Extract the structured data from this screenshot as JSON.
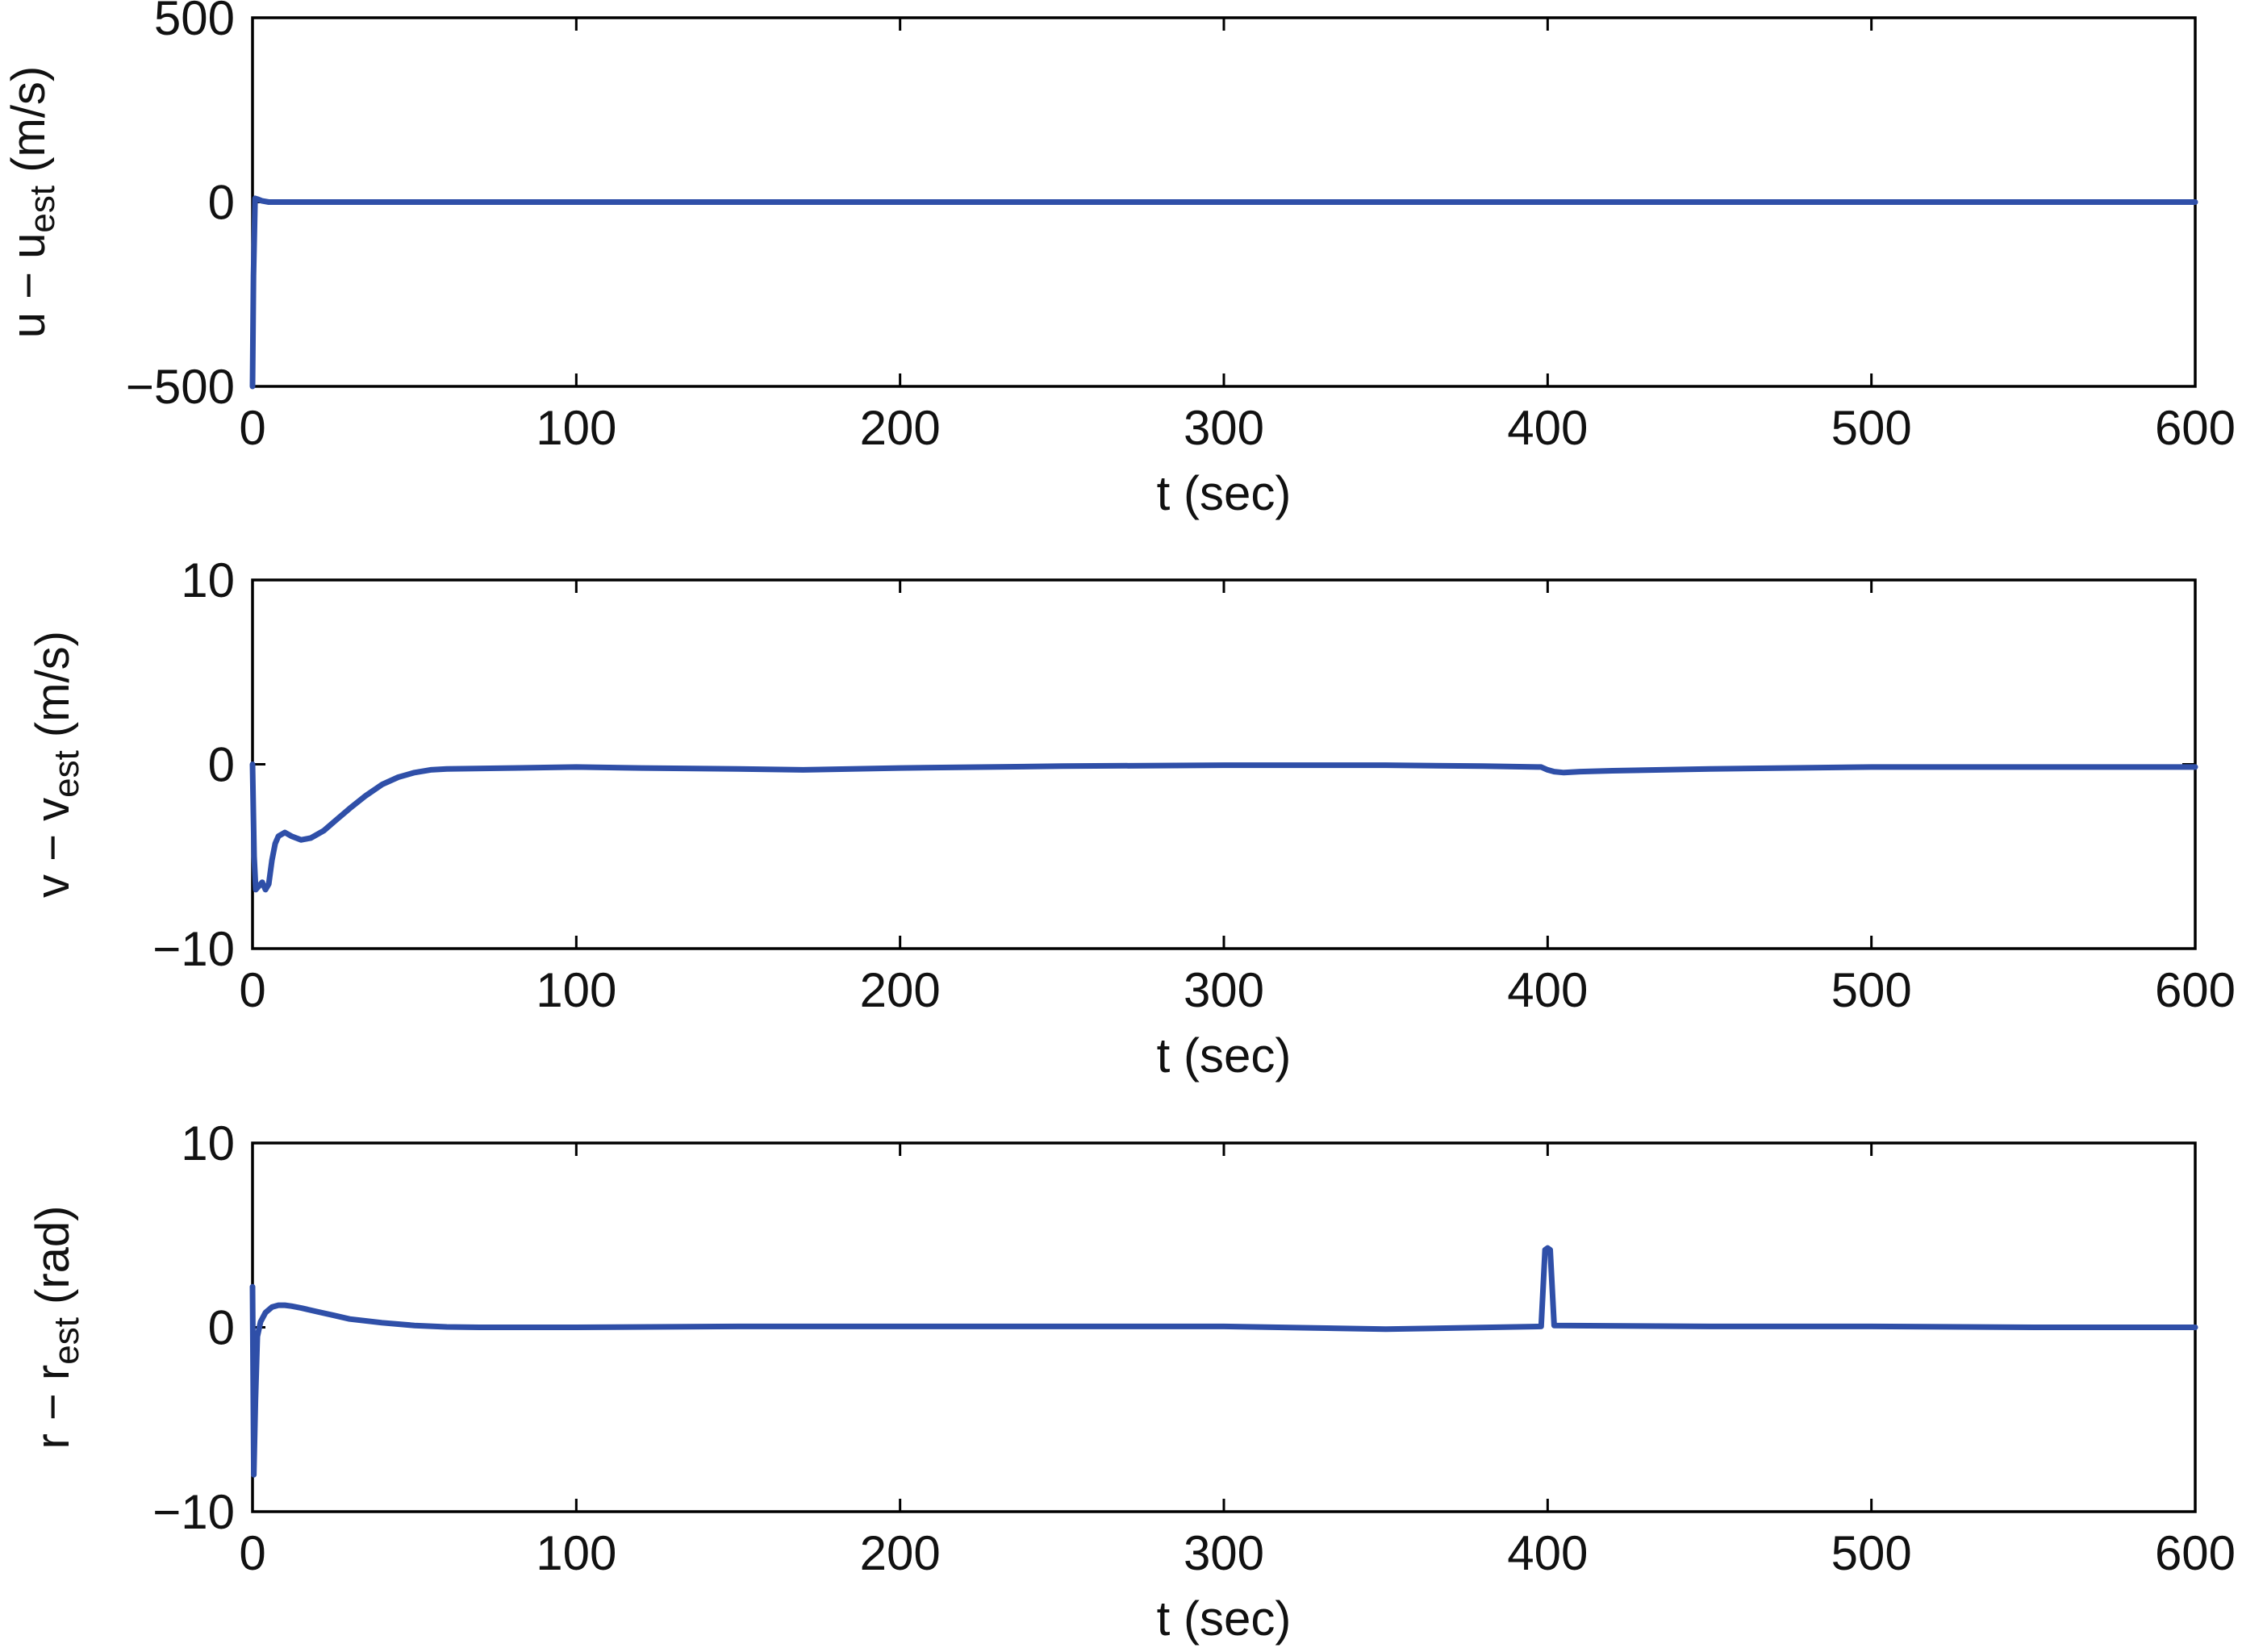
{
  "chart_data": [
    {
      "type": "line",
      "xlabel": "t (sec)",
      "ylabel": {
        "pre": "u − u",
        "sub": "est",
        "post": " (m/s)"
      },
      "xlim": [
        0,
        600
      ],
      "ylim": [
        -500,
        500
      ],
      "xticks": [
        "0",
        "100",
        "200",
        "300",
        "400",
        "500",
        "600"
      ],
      "yticks": [
        "500",
        "0",
        "−500"
      ],
      "xtick_values": [
        0,
        100,
        200,
        300,
        400,
        500,
        600
      ],
      "ytick_values": [
        500,
        0,
        -500
      ],
      "grid": false,
      "color": "#2f4fa8",
      "series": [
        {
          "x": [
            0,
            0.3,
            0.8,
            1.5,
            3,
            5,
            10,
            50,
            100,
            200,
            300,
            400,
            500,
            600
          ],
          "y": [
            -500,
            -200,
            10,
            8,
            3,
            0,
            0,
            0,
            0,
            0,
            0,
            0,
            0,
            0
          ]
        }
      ]
    },
    {
      "type": "line",
      "xlabel": "t (sec)",
      "ylabel": {
        "pre": "v − v",
        "sub": "est",
        "post": " (m/s)"
      },
      "xlim": [
        0,
        600
      ],
      "ylim": [
        -10,
        10
      ],
      "xticks": [
        "0",
        "100",
        "200",
        "300",
        "400",
        "500",
        "600"
      ],
      "yticks": [
        "10",
        "0",
        "−10"
      ],
      "xtick_values": [
        0,
        100,
        200,
        300,
        400,
        500,
        600
      ],
      "ytick_values": [
        10,
        0,
        -10
      ],
      "grid": false,
      "color": "#2f4fa8",
      "series": [
        {
          "x": [
            0,
            0.5,
            1,
            2,
            3,
            4,
            5,
            6,
            7,
            8,
            10,
            12,
            15,
            18,
            22,
            26,
            30,
            35,
            40,
            45,
            50,
            55,
            60,
            80,
            100,
            120,
            150,
            170,
            200,
            250,
            300,
            350,
            380,
            398,
            400,
            402,
            405,
            410,
            420,
            450,
            500,
            550,
            600
          ],
          "y": [
            0,
            -5,
            -6.8,
            -6.6,
            -6.4,
            -6.8,
            -6.5,
            -5.2,
            -4.3,
            -3.9,
            -3.7,
            -3.9,
            -4.1,
            -4.0,
            -3.6,
            -3.0,
            -2.4,
            -1.7,
            -1.1,
            -0.7,
            -0.45,
            -0.3,
            -0.25,
            -0.2,
            -0.15,
            -0.2,
            -0.25,
            -0.3,
            -0.2,
            -0.1,
            -0.05,
            -0.05,
            -0.1,
            -0.15,
            -0.3,
            -0.4,
            -0.45,
            -0.4,
            -0.35,
            -0.25,
            -0.15,
            -0.15,
            -0.15
          ]
        }
      ]
    },
    {
      "type": "line",
      "xlabel": "t (sec)",
      "ylabel": {
        "pre": "r − r",
        "sub": "est",
        "post": " (rad)"
      },
      "xlim": [
        0,
        600
      ],
      "ylim": [
        -10,
        10
      ],
      "xticks": [
        "0",
        "100",
        "200",
        "300",
        "400",
        "500",
        "600"
      ],
      "yticks": [
        "10",
        "0",
        "−10"
      ],
      "xtick_values": [
        0,
        100,
        200,
        300,
        400,
        500,
        600
      ],
      "ytick_values": [
        10,
        0,
        -10
      ],
      "grid": false,
      "color": "#2f4fa8",
      "series": [
        {
          "x": [
            0,
            0.4,
            0.9,
            1.5,
            2.5,
            4,
            6,
            8,
            10,
            12,
            15,
            20,
            25,
            30,
            40,
            50,
            60,
            70,
            100,
            150,
            200,
            300,
            350,
            398,
            399.2,
            400,
            400.8,
            402,
            450,
            500,
            550,
            600
          ],
          "y": [
            2.2,
            -8,
            -4,
            -0.5,
            0.3,
            0.8,
            1.1,
            1.2,
            1.2,
            1.15,
            1.05,
            0.85,
            0.65,
            0.45,
            0.25,
            0.1,
            0.02,
            0,
            0,
            0.05,
            0.05,
            0.05,
            -0.1,
            0.05,
            4.2,
            4.3,
            4.2,
            0.1,
            0.05,
            0.05,
            0,
            0
          ]
        }
      ]
    }
  ]
}
